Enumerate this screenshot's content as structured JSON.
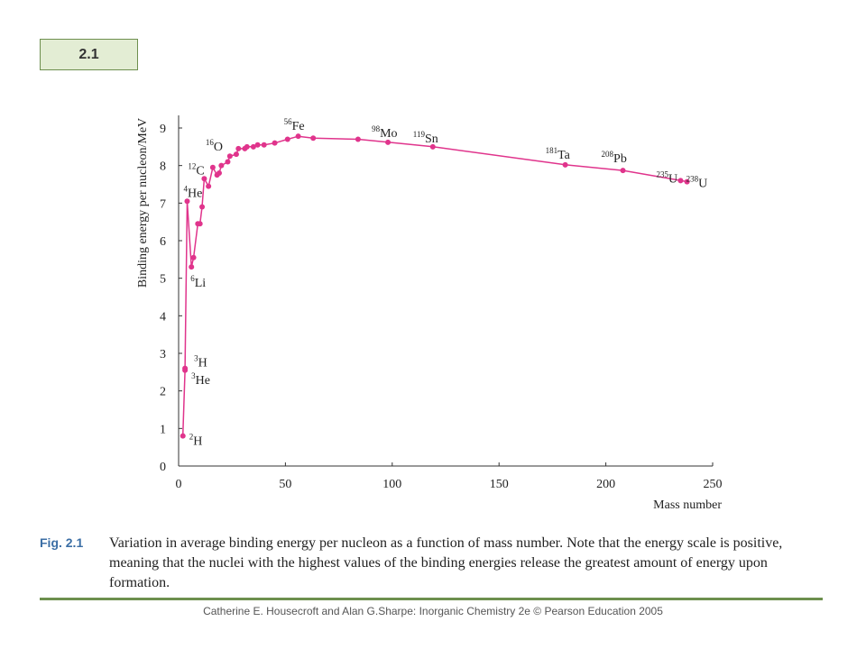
{
  "slide": {
    "badge": "2.1"
  },
  "chart_data": {
    "type": "line",
    "xlabel": "Mass number",
    "ylabel": "Binding energy per nucleon/MeV",
    "xlim": [
      0,
      250
    ],
    "ylim": [
      0,
      9
    ],
    "x_ticks": [
      "0",
      "50",
      "100",
      "150",
      "200",
      "250"
    ],
    "y_ticks": [
      "0",
      "1",
      "2",
      "3",
      "4",
      "5",
      "6",
      "7",
      "8",
      "9"
    ],
    "grid": false,
    "series": [
      {
        "color": "#e0348c",
        "points": [
          [
            2,
            0.8
          ],
          [
            3,
            2.55
          ],
          [
            3,
            2.6
          ],
          [
            4,
            7.05
          ],
          [
            6,
            5.3
          ],
          [
            7,
            5.55
          ],
          [
            9,
            6.45
          ],
          [
            10,
            6.45
          ],
          [
            11,
            6.9
          ],
          [
            12,
            7.65
          ],
          [
            14,
            7.45
          ],
          [
            16,
            7.95
          ],
          [
            18,
            7.75
          ],
          [
            19,
            7.8
          ],
          [
            20,
            8.0
          ],
          [
            23,
            8.1
          ],
          [
            24,
            8.25
          ],
          [
            27,
            8.3
          ],
          [
            28,
            8.45
          ],
          [
            31,
            8.45
          ],
          [
            32,
            8.5
          ],
          [
            35,
            8.5
          ],
          [
            37,
            8.55
          ],
          [
            40,
            8.55
          ],
          [
            45,
            8.6
          ],
          [
            51,
            8.7
          ],
          [
            56,
            8.78
          ],
          [
            63,
            8.73
          ],
          [
            84,
            8.7
          ],
          [
            98,
            8.62
          ],
          [
            119,
            8.5
          ],
          [
            181,
            8.02
          ],
          [
            208,
            7.87
          ],
          [
            235,
            7.6
          ],
          [
            238,
            7.57
          ]
        ]
      }
    ],
    "annotations": [
      {
        "sup": "2",
        "label": "H",
        "x": 2,
        "y": 0.8
      },
      {
        "sup": "3",
        "label": "H",
        "x": 3,
        "y": 2.6
      },
      {
        "sup": "3",
        "label": "He",
        "x": 3,
        "y": 2.55
      },
      {
        "sup": "4",
        "label": "He",
        "x": 4,
        "y": 7.05
      },
      {
        "sup": "6",
        "label": "Li",
        "x": 6,
        "y": 5.3
      },
      {
        "sup": "12",
        "label": "C",
        "x": 12,
        "y": 7.65
      },
      {
        "sup": "16",
        "label": "O",
        "x": 16,
        "y": 7.95
      },
      {
        "sup": "56",
        "label": "Fe",
        "x": 56,
        "y": 8.78
      },
      {
        "sup": "98",
        "label": "Mo",
        "x": 98,
        "y": 8.62
      },
      {
        "sup": "119",
        "label": "Sn",
        "x": 119,
        "y": 8.5
      },
      {
        "sup": "181",
        "label": "Ta",
        "x": 181,
        "y": 8.02
      },
      {
        "sup": "208",
        "label": "Pb",
        "x": 208,
        "y": 7.87
      },
      {
        "sup": "235",
        "label": "U",
        "x": 235,
        "y": 7.6
      },
      {
        "sup": "238",
        "label": "U",
        "x": 238,
        "y": 7.57
      }
    ]
  },
  "caption": {
    "label": "Fig. 2.1",
    "text": "Variation in average binding energy per nucleon as a function of mass number. Note that the energy scale is positive, meaning that the nuclei with the highest values of the binding energies release the greatest amount of energy upon formation."
  },
  "footer": {
    "credit": "Catherine E. Housecroft and Alan G.Sharpe: Inorganic Chemistry 2e © Pearson Education 2005"
  }
}
